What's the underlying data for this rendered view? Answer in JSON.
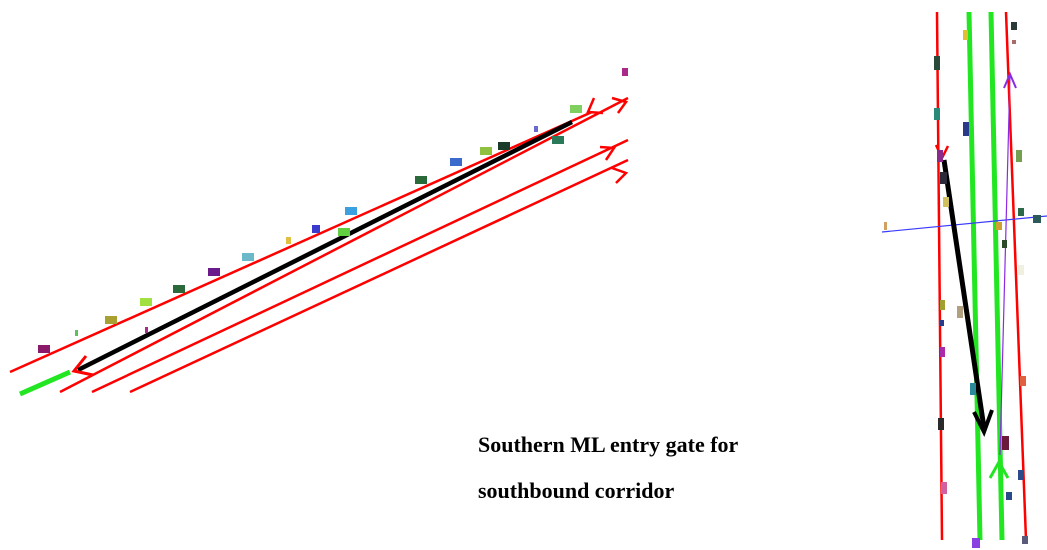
{
  "caption": {
    "line1": "Southern ML entry gate for",
    "line2": "southbound corridor"
  },
  "colors": {
    "lane_line": "#ff0000",
    "ramp_line": "#22e622",
    "route_arrow": "#000000",
    "gate_line": "#3a3aff",
    "ml_marker": "#8a2be2",
    "background": "#ffffff"
  },
  "icons": {
    "route": "black-arrow-icon",
    "lane_direction": "red-chevron-icon",
    "ramp_direction": "green-chevron-icon"
  }
}
